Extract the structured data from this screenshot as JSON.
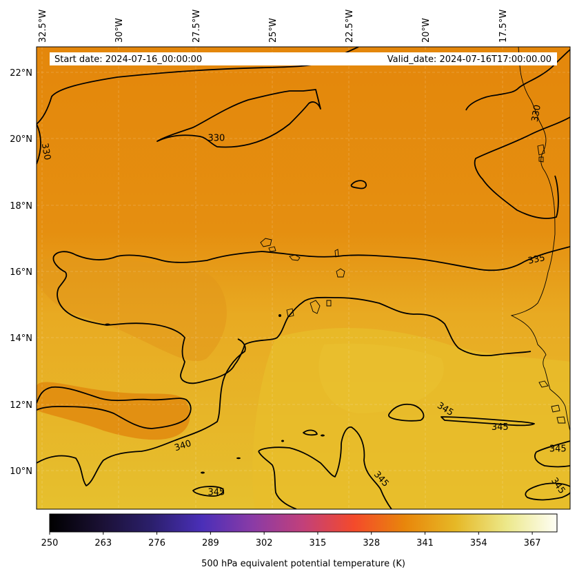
{
  "header": {
    "start_date": "Start date: 2024-07-16_00:00:00",
    "valid_date": "Valid_date: 2024-07-16T17:00:00.00"
  },
  "map": {
    "lon_labels": [
      "32.5°W",
      "30°W",
      "27.5°W",
      "25°W",
      "22.5°W",
      "20°W",
      "17.5°W"
    ],
    "lat_labels": [
      "22°N",
      "20°N",
      "18°N",
      "16°N",
      "14°N",
      "12°N",
      "10°N"
    ],
    "extent": {
      "lon_min": -33.0,
      "lon_max": -15.5,
      "lat_min": 8.9,
      "lat_max": 22.8
    },
    "contour_labels": [
      {
        "value": "330",
        "lon": -27.1,
        "lat": 20.05,
        "rotate": 0
      },
      {
        "value": "330",
        "lon": -32.7,
        "lat": 19.65,
        "rotate": 80
      },
      {
        "value": "330",
        "lon": -16.6,
        "lat": 20.8,
        "rotate": -80
      },
      {
        "value": "335",
        "lon": -16.6,
        "lat": 16.4,
        "rotate": -12
      },
      {
        "value": "340",
        "lon": -28.2,
        "lat": 10.8,
        "rotate": -18
      },
      {
        "value": "345",
        "lon": -19.6,
        "lat": 11.9,
        "rotate": 32
      },
      {
        "value": "345",
        "lon": -17.8,
        "lat": 11.35,
        "rotate": 0
      },
      {
        "value": "345",
        "lon": -15.9,
        "lat": 10.7,
        "rotate": 0
      },
      {
        "value": "345",
        "lon": -27.1,
        "lat": 9.4,
        "rotate": 0
      },
      {
        "value": "345",
        "lon": -21.7,
        "lat": 9.8,
        "rotate": 48
      },
      {
        "value": "345",
        "lon": -15.9,
        "lat": 9.6,
        "rotate": 55
      }
    ],
    "colors": {
      "contour": "#000000",
      "field_low": "#e3870a",
      "field_high": "#e7bd2c"
    }
  },
  "colorbar": {
    "ticks": [
      "250",
      "263",
      "276",
      "289",
      "302",
      "315",
      "328",
      "341",
      "354",
      "367"
    ],
    "range": [
      250,
      373
    ],
    "label": "500 hPa equivalent potential temperature (K)",
    "colormap": [
      "#000000",
      "#1a1033",
      "#2b1f6b",
      "#4a2fb8",
      "#8a3ba6",
      "#c2407a",
      "#f44a2b",
      "#e8860b",
      "#e6b826",
      "#ece88a",
      "#fefef5"
    ]
  }
}
